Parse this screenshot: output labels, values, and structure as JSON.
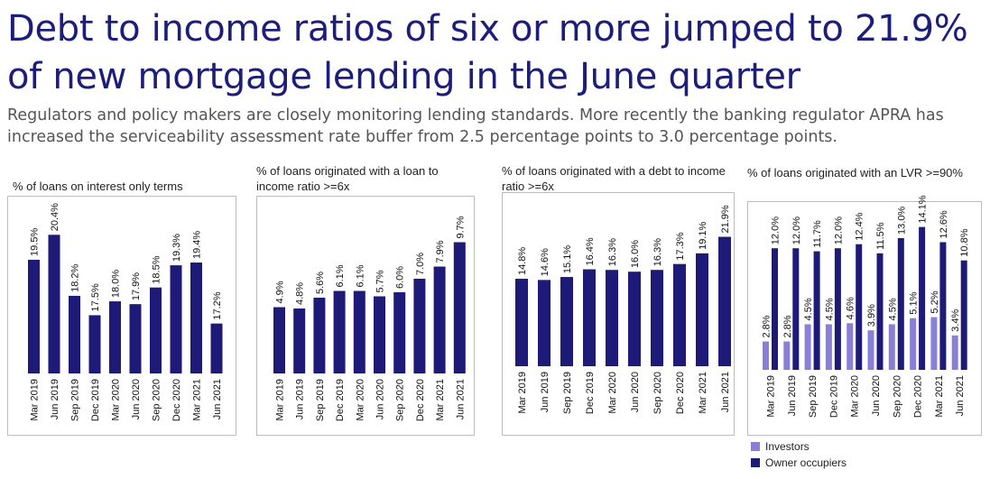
{
  "page": {
    "title": "Debt to income ratios of six or more jumped to 21.9% of new mortgage lending in the June quarter",
    "subtitle": "Regulators and policy makers are closely monitoring lending standards. More recently the banking regulator APRA has increased the serviceability assessment rate buffer from 2.5 percentage points to 3.0 percentage points."
  },
  "colors": {
    "owner": "#1e1a78",
    "investor": "#8a7fd6",
    "title": "#1d1d7a"
  },
  "legend": {
    "investors": "Investors",
    "owner_occupiers": "Owner occupiers"
  },
  "chart_data": [
    {
      "type": "bar",
      "title": "% of loans on interest only terms",
      "categories": [
        "Mar 2019",
        "Jun 2019",
        "Sep 2019",
        "Dec 2019",
        "Mar 2020",
        "Jun 2020",
        "Sep 2020",
        "Dec 2020",
        "Mar 2021",
        "Jun 2021"
      ],
      "series": [
        {
          "values": [
            19.5,
            20.4,
            18.2,
            17.5,
            18.0,
            17.9,
            18.5,
            19.3,
            19.4,
            17.2
          ]
        }
      ],
      "labels": [
        "19.5%",
        "20.4%",
        "18.2%",
        "17.5%",
        "18.0%",
        "17.9%",
        "18.5%",
        "19.3%",
        "19.4%",
        "17.2%"
      ],
      "ylim": [
        15.4,
        20.8
      ]
    },
    {
      "type": "bar",
      "title": "% of loans originated with a loan to income ratio >=6x",
      "categories": [
        "Mar 2019",
        "Jun 2019",
        "Sep 2019",
        "Dec 2019",
        "Mar 2020",
        "Jun 2020",
        "Sep 2020",
        "Dec 2020",
        "Mar 2021",
        "Jun 2021"
      ],
      "series": [
        {
          "values": [
            4.9,
            4.8,
            5.6,
            6.1,
            6.1,
            5.7,
            6.0,
            7.0,
            7.9,
            9.7
          ]
        }
      ],
      "labels": [
        "4.9%",
        "4.8%",
        "5.6%",
        "6.1%",
        "6.1%",
        "5.7%",
        "6.0%",
        "7.0%",
        "7.9%",
        "9.7%"
      ],
      "ylim": [
        0,
        10.4
      ]
    },
    {
      "type": "bar",
      "title": "% of loans originated with a debt to income ratio >=6x",
      "categories": [
        "Mar 2019",
        "Jun 2019",
        "Sep 2019",
        "Dec 2019",
        "Mar 2020",
        "Jun 2020",
        "Sep 2020",
        "Dec 2020",
        "Mar 2021",
        "Jun 2021"
      ],
      "series": [
        {
          "values": [
            14.8,
            14.6,
            15.1,
            16.4,
            16.3,
            16.0,
            16.3,
            17.3,
            19.1,
            21.9
          ]
        }
      ],
      "labels": [
        "14.8%",
        "14.6%",
        "15.1%",
        "16.4%",
        "16.3%",
        "16.0%",
        "16.3%",
        "17.3%",
        "19.1%",
        "21.9%"
      ],
      "ylim": [
        0,
        23.2
      ]
    },
    {
      "type": "bar",
      "title": "% of loans originated with an LVR >=90%",
      "categories": [
        "Mar 2019",
        "Jun 2019",
        "Sep 2019",
        "Dec 2019",
        "Mar 2020",
        "Jun 2020",
        "Sep 2020",
        "Dec 2020",
        "Mar 2021",
        "Jun 2021"
      ],
      "series": [
        {
          "name": "Investors",
          "values": [
            2.8,
            2.8,
            4.5,
            4.5,
            4.6,
            3.9,
            4.5,
            5.1,
            5.2,
            3.4
          ],
          "labels": [
            "2.8%",
            "2.8%",
            "4.5%",
            "4.5%",
            "4.6%",
            "3.9%",
            "4.5%",
            "5.1%",
            "5.2%",
            "3.4%"
          ]
        },
        {
          "name": "Owner occupiers",
          "values": [
            12.0,
            12.0,
            11.7,
            12.0,
            12.4,
            11.5,
            13.0,
            14.1,
            12.6,
            10.8
          ],
          "labels": [
            "12.0%",
            "12.0%",
            "11.7%",
            "12.0%",
            "12.4%",
            "11.5%",
            "13.0%",
            "14.1%",
            "12.6%",
            "10.8%"
          ]
        }
      ],
      "ylim": [
        0,
        14.6
      ],
      "legend": "bottom-left"
    }
  ]
}
